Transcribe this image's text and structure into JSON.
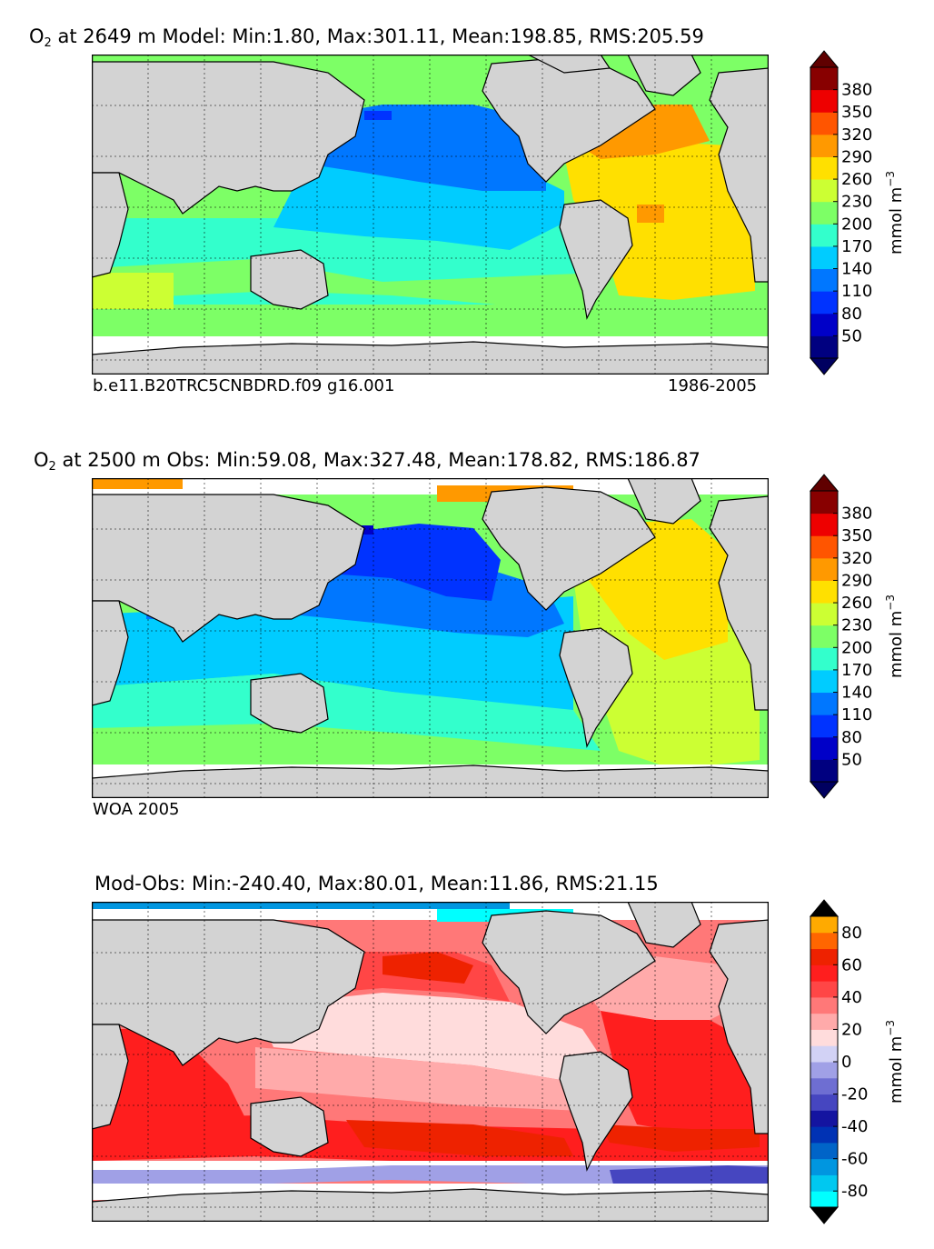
{
  "chart_data": [
    {
      "type": "heatmap",
      "title_species": "O",
      "title_sub": "2",
      "title_rest": " at 2649 m Model: Min:1.80, Max:301.11, Mean:198.85, RMS:205.59",
      "stats": {
        "depth_m": 2649,
        "min": 1.8,
        "max": 301.11,
        "mean": 198.85,
        "rms": 205.59
      },
      "footer_left": "b.e11.B20TRC5CNBDRD.f09 g16.001",
      "footer_right": "1986-2005",
      "colorbar": {
        "levels": [
          20,
          50,
          80,
          110,
          140,
          170,
          200,
          230,
          260,
          290,
          320,
          350,
          380,
          410
        ],
        "tick_labels": [
          "50",
          "80",
          "110",
          "140",
          "170",
          "200",
          "230",
          "260",
          "290",
          "320",
          "350",
          "380"
        ],
        "colors": [
          "#000080",
          "#0000c8",
          "#0033ff",
          "#0077ff",
          "#00ccff",
          "#33ffcc",
          "#7dff66",
          "#ccff33",
          "#ffe000",
          "#ff9900",
          "#ff5500",
          "#ee0000",
          "#880000"
        ],
        "under_color": "#000060",
        "over_color": "#600000",
        "unit": "mmol m",
        "unit_sup": "−3"
      },
      "grid": true,
      "grid_lon_step_deg": 30,
      "grid_lat_step_deg": 20
    },
    {
      "type": "heatmap",
      "title_species": "O",
      "title_sub": "2",
      "title_rest": " at 2500 m Obs: Min:59.08, Max:327.48, Mean:178.82, RMS:186.87",
      "stats": {
        "depth_m": 2500,
        "min": 59.08,
        "max": 327.48,
        "mean": 178.82,
        "rms": 186.87
      },
      "footer_left": "WOA 2005",
      "footer_right": "",
      "colorbar": {
        "levels": [
          20,
          50,
          80,
          110,
          140,
          170,
          200,
          230,
          260,
          290,
          320,
          350,
          380,
          410
        ],
        "tick_labels": [
          "50",
          "80",
          "110",
          "140",
          "170",
          "200",
          "230",
          "260",
          "290",
          "320",
          "350",
          "380"
        ],
        "colors": [
          "#000080",
          "#0000c8",
          "#0033ff",
          "#0077ff",
          "#00ccff",
          "#33ffcc",
          "#7dff66",
          "#ccff33",
          "#ffe000",
          "#ff9900",
          "#ff5500",
          "#ee0000",
          "#880000"
        ],
        "under_color": "#000060",
        "over_color": "#600000",
        "unit": "mmol m",
        "unit_sup": "−3"
      },
      "grid": true,
      "grid_lon_step_deg": 30,
      "grid_lat_step_deg": 20
    },
    {
      "type": "heatmap",
      "title_species": "",
      "title_sub": "",
      "title_rest": "Mod-Obs: Min:-240.40, Max:80.01, Mean:11.86, RMS:21.15",
      "stats": {
        "min": -240.4,
        "max": 80.01,
        "mean": 11.86,
        "rms": 21.15
      },
      "footer_left": "",
      "footer_right": "",
      "colorbar": {
        "levels": [
          -90,
          -80,
          -70,
          -60,
          -50,
          -40,
          -30,
          -20,
          -10,
          0,
          10,
          20,
          30,
          40,
          50,
          60,
          70,
          80,
          90
        ],
        "tick_labels": [
          "-80",
          "-60",
          "-40",
          "-20",
          "0",
          "20",
          "40",
          "60",
          "80"
        ],
        "tick_values": [
          -80,
          -60,
          -40,
          -20,
          0,
          20,
          40,
          60,
          80
        ],
        "colors": [
          "#00ffff",
          "#00c8f0",
          "#0096e0",
          "#0064c8",
          "#0032b4",
          "#1414a0",
          "#4646c0",
          "#6e6ed2",
          "#a0a0e6",
          "#d2d2f5",
          "#ffdcdc",
          "#ffaaaa",
          "#ff7878",
          "#ff4646",
          "#ff1e1e",
          "#ee2200",
          "#ff6600",
          "#ffaa00",
          "#ffff00"
        ],
        "under_color": "#000000",
        "over_color": "#000000",
        "unit": "mmol m",
        "unit_sup": "−3"
      },
      "grid": true,
      "grid_lon_step_deg": 30,
      "grid_lat_step_deg": 20
    }
  ]
}
